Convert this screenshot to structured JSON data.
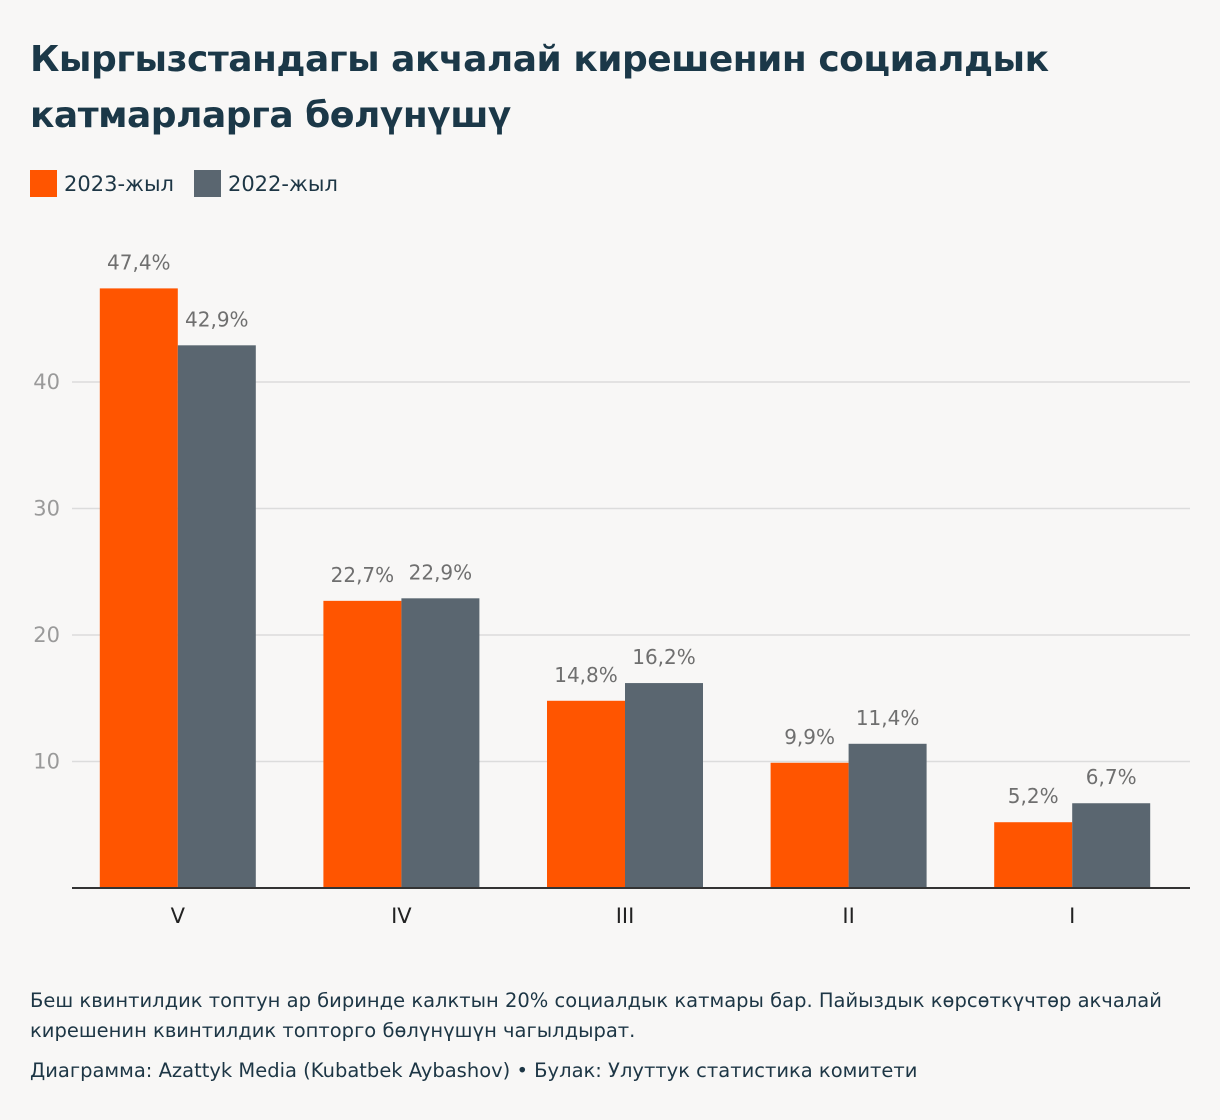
{
  "header": {
    "title": "Кыргызстандагы акчалай кирешенин социалдык катмарларга бөлүнүшү"
  },
  "colors": {
    "series_2023": "#ff5500",
    "series_2022": "#5a6670",
    "grid": "#dcdcdc",
    "axis": "#333333"
  },
  "chart_data": {
    "type": "bar",
    "title": "Кыргызстандагы акчалай кирешенин социалдык катмарларга бөлүнүшү",
    "xlabel": "",
    "ylabel": "",
    "categories": [
      "V",
      "IV",
      "III",
      "II",
      "I"
    ],
    "series": [
      {
        "name": "2023-жыл",
        "values": [
          47.4,
          22.7,
          14.8,
          9.9,
          5.2
        ],
        "labels": [
          "47,4%",
          "22,7%",
          "14,8%",
          "9,9%",
          "5,2%"
        ]
      },
      {
        "name": "2022-жыл",
        "values": [
          42.9,
          22.9,
          16.2,
          11.4,
          6.7
        ],
        "labels": [
          "42,9%",
          "22,9%",
          "16,2%",
          "11,4%",
          "6,7%"
        ]
      }
    ],
    "yticks": [
      10,
      20,
      30,
      40
    ],
    "ylim": [
      0,
      50
    ],
    "grid": true,
    "legend": "top-left"
  },
  "footer": {
    "note": "Беш квинтилдик топтун ар биринде калктын 20% социалдык катмары бар. Пайыздык көрсөткүчтөр акчалай кирешенин квинтилдик топторго бөлүнүшүн чагылдырат.",
    "credit": "Диаграмма: Azattyk Media (Kubatbek Aybashov) • Булак: Улуттук статистика комитети"
  }
}
